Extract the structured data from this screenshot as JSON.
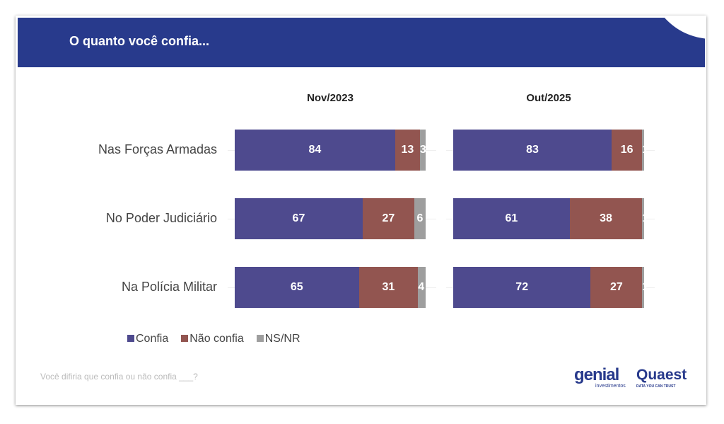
{
  "title": "O quanto você confia...",
  "colors": {
    "header": "#283a8c",
    "Confia": "#4e4a8e",
    "Não confia": "#925550",
    "NS/NR": "#9e9e9e"
  },
  "chart_data": {
    "type": "stacked-bar-horizontal",
    "categories": [
      "Nas Forças Armadas",
      "No Poder Judiciário",
      "Na Polícia Militar"
    ],
    "panels": [
      {
        "title": "Nov/2023",
        "series": [
          {
            "name": "Confia",
            "values": [
              84,
              67,
              65
            ]
          },
          {
            "name": "Não confia",
            "values": [
              13,
              27,
              31
            ]
          },
          {
            "name": "NS/NR",
            "values": [
              3,
              6,
              4
            ]
          }
        ]
      },
      {
        "title": "Out/2025",
        "series": [
          {
            "name": "Confia",
            "values": [
              83,
              61,
              72
            ]
          },
          {
            "name": "Não confia",
            "values": [
              16,
              38,
              27
            ]
          },
          {
            "name": "NS/NR",
            "values": [
              1,
              1,
              1
            ]
          }
        ]
      }
    ],
    "xlim": [
      0,
      100
    ],
    "legend": "bottom-left"
  },
  "legend": [
    "Confia",
    "Não confia",
    "NS/NR"
  ],
  "note": "Você difiria que confia ou não confia ___?",
  "logos": {
    "genial": "genial",
    "genial_sub": "investimentos",
    "quaest": "Quaest",
    "quaest_sub": "DATA YOU CAN TRUST"
  }
}
